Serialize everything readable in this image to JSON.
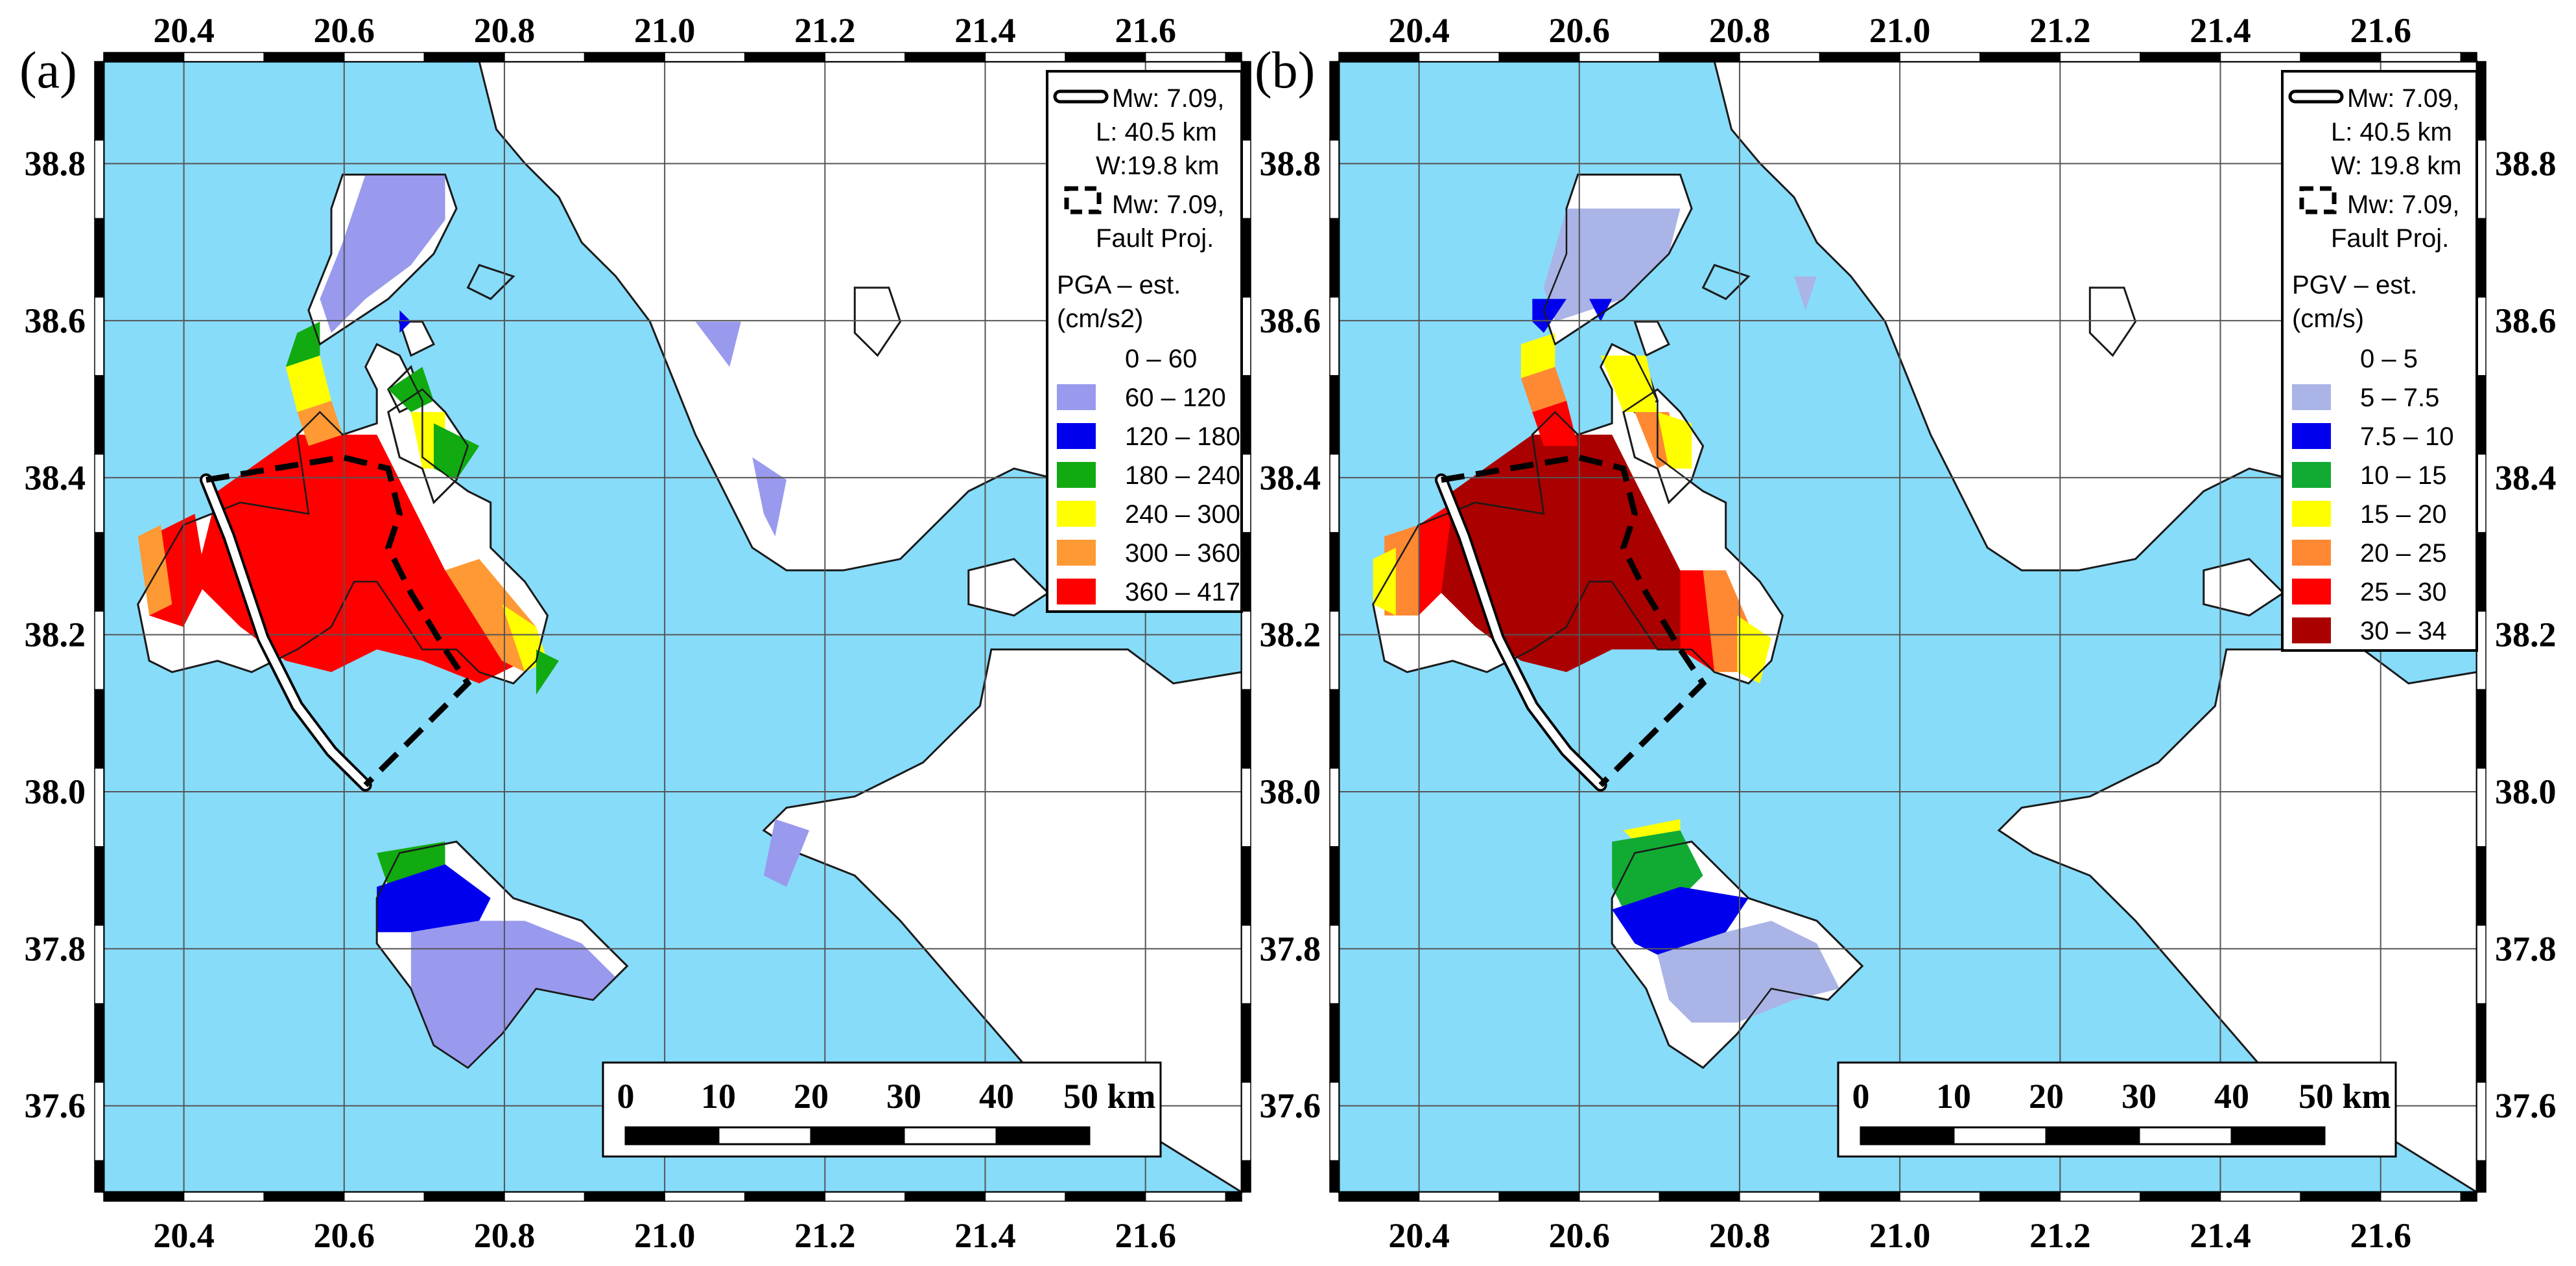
{
  "figure": {
    "colors": {
      "sea": "#87dcfa",
      "land": "#ffffff",
      "coast": "#1a1a1a",
      "grid": "#555555"
    },
    "lon_ticks": [
      "20.4",
      "20.6",
      "20.8",
      "21.0",
      "21.2",
      "21.4",
      "21.6"
    ],
    "lat_ticks": [
      "38.8",
      "38.6",
      "38.4",
      "38.2",
      "38.0",
      "37.8",
      "37.6"
    ],
    "extent": {
      "lon": [
        20.3,
        21.72
      ],
      "lat": [
        37.49,
        38.93
      ]
    },
    "panels": [
      {
        "label": "(a)",
        "legend": {
          "fault_line": [
            "Mw: 7.09,",
            "L: 40.5 km",
            "W:19.8 km"
          ],
          "fault_proj": [
            "Mw: 7.09,",
            "Fault Proj."
          ],
          "param_title": [
            "PGA – est.",
            "(cm/s2)"
          ],
          "classes": [
            {
              "range": "0 – 60",
              "color": "#ffffff"
            },
            {
              "range": "60 – 120",
              "color": "#9999ee"
            },
            {
              "range": "120 – 180",
              "color": "#0000ee"
            },
            {
              "range": "180 – 240",
              "color": "#11aa11"
            },
            {
              "range": "240 – 300",
              "color": "#ffff00"
            },
            {
              "range": "300 – 360",
              "color": "#ff9933"
            },
            {
              "range": "360 – 417",
              "color": "#ff0000"
            }
          ]
        },
        "scale_bar": {
          "labels": [
            "0",
            "10",
            "20",
            "30",
            "40",
            "50 km"
          ]
        }
      },
      {
        "label": "(b)",
        "legend": {
          "fault_line": [
            "Mw: 7.09,",
            "L: 40.5 km",
            "W: 19.8 km"
          ],
          "fault_proj": [
            "Mw: 7.09,",
            "Fault Proj."
          ],
          "param_title": [
            "PGV – est.",
            "(cm/s)"
          ],
          "classes": [
            {
              "range": "0 – 5",
              "color": "#ffffff"
            },
            {
              "range": "5 – 7.5",
              "color": "#aab4e6"
            },
            {
              "range": "7.5 – 10",
              "color": "#0000ee"
            },
            {
              "range": "10 – 15",
              "color": "#11aa33"
            },
            {
              "range": "15 – 20",
              "color": "#ffff00"
            },
            {
              "range": "20 – 25",
              "color": "#ff8833"
            },
            {
              "range": "25 – 30",
              "color": "#ff0000"
            },
            {
              "range": "30 – 34",
              "color": "#aa0000"
            }
          ]
        },
        "scale_bar": {
          "labels": [
            "0",
            "10",
            "20",
            "30",
            "40",
            "50 km"
          ]
        }
      }
    ]
  }
}
